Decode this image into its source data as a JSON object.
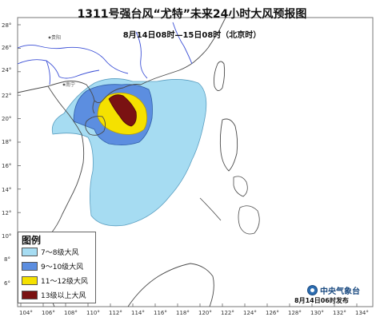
{
  "title": "1311号强台风“尤特”未来24小时大风预报图",
  "subtitle": "8月14日08时—15日08时（北京时）",
  "map": {
    "longitude_ticks": [
      "104°",
      "106°",
      "108°",
      "110°",
      "112°",
      "114°",
      "116°",
      "118°",
      "120°",
      "122°",
      "124°",
      "126°",
      "128°",
      "130°",
      "132°",
      "134°"
    ],
    "latitude_ticks": [
      "28°",
      "26°",
      "24°",
      "22°",
      "20°",
      "18°",
      "16°",
      "14°",
      "12°",
      "10°",
      "8°",
      "6°"
    ],
    "place_labels": [
      "贵阳",
      "南宁"
    ],
    "colors": {
      "sea": "#ffffff",
      "land": "#ffffff",
      "coastline": "#4a4a4a",
      "border": "#3b4fd6",
      "zone_7_8": "#a6dcf2",
      "zone_9_10": "#5c8ee0",
      "zone_11_12": "#f5e100",
      "zone_13_plus": "#7a1212"
    }
  },
  "legend": {
    "title": "图例",
    "items": [
      {
        "label": "7～8级大风",
        "color": "#a6dcf2"
      },
      {
        "label": "9～10级大风",
        "color": "#5c8ee0"
      },
      {
        "label": "11～12级大风",
        "color": "#f5e100"
      },
      {
        "label": "13级以上大风",
        "color": "#7a1212"
      }
    ]
  },
  "agency": {
    "name": "中央气象台"
  },
  "issued": "8月14日06时发布"
}
